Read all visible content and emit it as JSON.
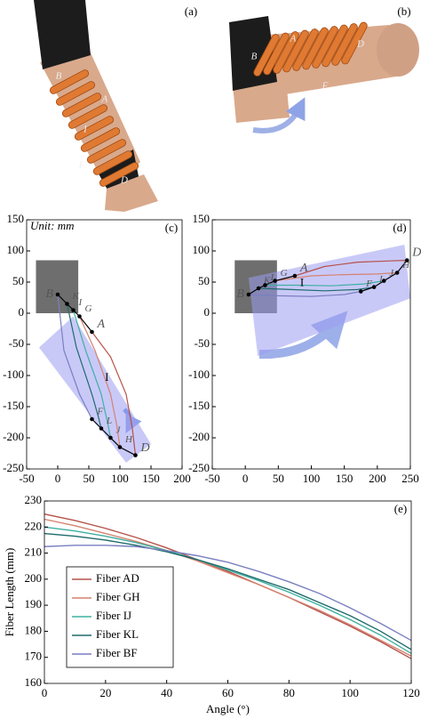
{
  "photos": [
    {
      "label": "(a)",
      "points": [
        "B",
        "A",
        "I",
        "F",
        "D"
      ]
    },
    {
      "label": "(b)",
      "points": [
        "A",
        "B",
        "D",
        "F"
      ]
    }
  ],
  "chart_data": [
    {
      "type": "line",
      "panel_label": "(c)",
      "annotation": "Unit: mm",
      "xlim": [
        -50,
        200
      ],
      "xticks": [
        -50,
        0,
        50,
        100,
        150,
        200
      ],
      "ylim": [
        -250,
        150
      ],
      "yticks": [
        -250,
        -200,
        -150,
        -100,
        -50,
        0,
        50,
        100,
        150
      ],
      "regions": [
        {
          "color": "#666666",
          "x": [
            -35,
            33,
            33,
            -35
          ],
          "y": [
            0,
            0,
            85,
            85
          ]
        },
        {
          "color": "#9c9cf2",
          "x": [
            -30,
            25,
            150,
            110
          ],
          "y": [
            -55,
            -5,
            -210,
            -240
          ]
        }
      ],
      "curves": [
        {
          "color": "#b5524a",
          "x": [
            55,
            85,
            110,
            120,
            125
          ],
          "y": [
            -30,
            -70,
            -130,
            -185,
            -228
          ]
        },
        {
          "color": "#d4826f",
          "x": [
            35,
            60,
            85,
            95,
            100
          ],
          "y": [
            -5,
            -60,
            -130,
            -180,
            -215
          ]
        },
        {
          "color": "#3fb0a0",
          "x": [
            25,
            45,
            70,
            80,
            85
          ],
          "y": [
            5,
            -60,
            -130,
            -175,
            -200
          ]
        },
        {
          "color": "#1f6b6b",
          "x": [
            15,
            30,
            55,
            65,
            70
          ],
          "y": [
            15,
            -55,
            -130,
            -165,
            -185
          ]
        },
        {
          "color": "#7b7fc0",
          "x": [
            0,
            10,
            35,
            50,
            55
          ],
          "y": [
            30,
            -60,
            -130,
            -160,
            -170
          ]
        }
      ],
      "chains": [
        {
          "labels": [
            "B",
            "K",
            "I",
            "G",
            "A"
          ],
          "x": [
            0,
            15,
            25,
            35,
            55
          ],
          "y": [
            30,
            15,
            5,
            -5,
            -30
          ]
        },
        {
          "labels": [
            "F",
            "L",
            "J",
            "H",
            "D"
          ],
          "x": [
            55,
            70,
            85,
            100,
            125
          ],
          "y": [
            -170,
            -185,
            -200,
            -215,
            -228
          ]
        }
      ],
      "region_label": {
        "text": "I",
        "x": 79,
        "y": -104
      }
    },
    {
      "type": "line",
      "panel_label": "(d)",
      "xlim": [
        -50,
        250
      ],
      "xticks": [
        -50,
        0,
        50,
        100,
        150,
        200,
        250
      ],
      "ylim": [
        -250,
        150
      ],
      "yticks": [
        -250,
        -200,
        -150,
        -100,
        -50,
        0,
        50,
        100,
        150
      ],
      "regions": [
        {
          "color": "#666666",
          "x": [
            -16,
            48,
            48,
            -16
          ],
          "y": [
            0,
            0,
            85,
            85
          ]
        },
        {
          "color": "#9c9cf2",
          "x": [
            5,
            241,
            250,
            19
          ],
          "y": [
            57,
            110,
            24,
            -69
          ]
        }
      ],
      "curves": [
        {
          "color": "#b5524a",
          "x": [
            75,
            120,
            170,
            220,
            245
          ],
          "y": [
            60,
            75,
            82,
            84,
            85
          ]
        },
        {
          "color": "#d4826f",
          "x": [
            45,
            100,
            150,
            200,
            230
          ],
          "y": [
            52,
            60,
            62,
            63,
            65
          ]
        },
        {
          "color": "#3fb0a0",
          "x": [
            30,
            80,
            130,
            180,
            210
          ],
          "y": [
            45,
            45,
            44,
            47,
            52
          ]
        },
        {
          "color": "#1f6b6b",
          "x": [
            20,
            70,
            120,
            170,
            195
          ],
          "y": [
            40,
            38,
            36,
            38,
            42
          ]
        },
        {
          "color": "#7b7fc0",
          "x": [
            5,
            50,
            100,
            150,
            175
          ],
          "y": [
            30,
            28,
            27,
            30,
            35
          ]
        }
      ],
      "chains": [
        {
          "labels": [
            "B",
            "K",
            "I",
            "G",
            "A"
          ],
          "x": [
            5,
            20,
            30,
            45,
            75
          ],
          "y": [
            30,
            40,
            45,
            52,
            60
          ]
        },
        {
          "labels": [
            "F",
            "L",
            "J",
            "H",
            "D"
          ],
          "x": [
            175,
            195,
            210,
            230,
            245
          ],
          "y": [
            35,
            42,
            52,
            65,
            85
          ]
        }
      ],
      "region_label": {
        "text": "I",
        "x": 86,
        "y": 48
      }
    },
    {
      "type": "line",
      "panel_label": "(e)",
      "xlabel": "Angle (°)",
      "ylabel": "Fiber Length (mm)",
      "xlim": [
        0,
        120
      ],
      "xticks": [
        0,
        20,
        40,
        60,
        80,
        100,
        120
      ],
      "ylim": [
        160,
        230
      ],
      "yticks": [
        160,
        170,
        180,
        190,
        200,
        210,
        220,
        230
      ],
      "legend": "lower left",
      "x": [
        0,
        10,
        20,
        30,
        40,
        50,
        60,
        70,
        80,
        90,
        100,
        110,
        120
      ],
      "series": [
        {
          "name": "Fiber AD",
          "color": "#b5524a",
          "values": [
            225,
            222.5,
            219.5,
            216,
            212,
            207.5,
            203,
            198,
            193,
            187.5,
            182,
            176,
            169.5
          ]
        },
        {
          "name": "Fiber GH",
          "color": "#d4826f",
          "values": [
            223,
            220.5,
            217.5,
            214.5,
            211,
            207,
            202.5,
            198,
            193,
            188,
            182.5,
            176.5,
            170.5
          ]
        },
        {
          "name": "Fiber IJ",
          "color": "#3fb0a0",
          "values": [
            220,
            218.5,
            216.5,
            214,
            211,
            207.5,
            203.5,
            199.5,
            195,
            190,
            184.5,
            178.5,
            171.5
          ]
        },
        {
          "name": "Fiber KL",
          "color": "#1f6b6b",
          "values": [
            217.5,
            216.5,
            215,
            213,
            210.5,
            207.5,
            204,
            200,
            196,
            191,
            186,
            180,
            173
          ]
        },
        {
          "name": "Fiber BF",
          "color": "#7b7fc0",
          "values": [
            212.5,
            213,
            213,
            212.5,
            211,
            209,
            206.5,
            203,
            199,
            194.5,
            189,
            183,
            176.5
          ]
        }
      ]
    }
  ]
}
